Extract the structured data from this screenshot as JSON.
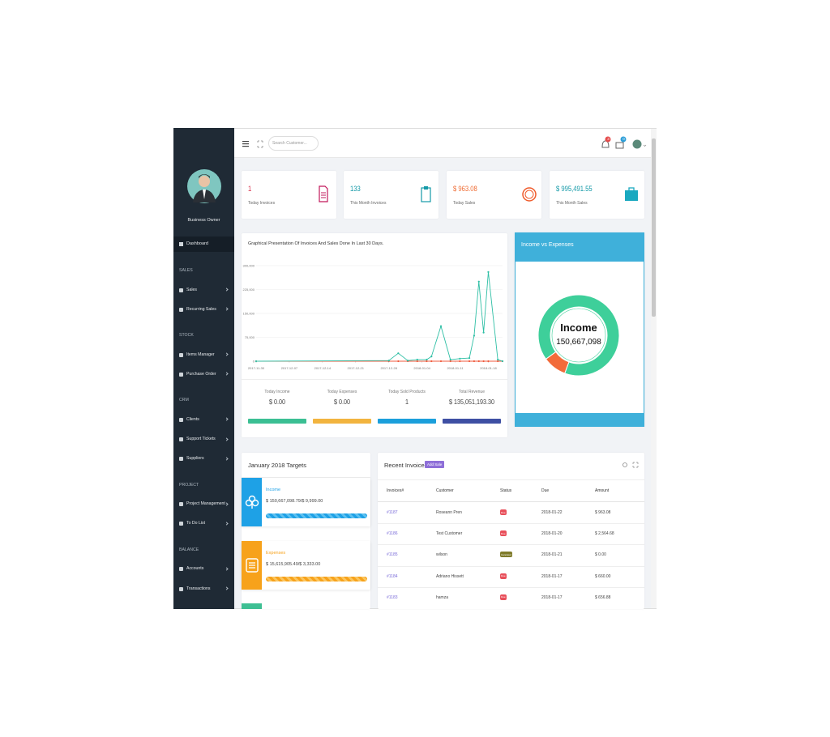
{
  "sidebar": {
    "user": "Business Owner",
    "dashboard": "Dashboard",
    "sections": [
      {
        "title": "SALES",
        "items": [
          "Sales",
          "Recurring Sales"
        ]
      },
      {
        "title": "STOCK",
        "items": [
          "Items Manager",
          "Purchase Order"
        ]
      },
      {
        "title": "CRM",
        "items": [
          "Clients",
          "Support Tickets",
          "Suppliers"
        ]
      },
      {
        "title": "PROJECT",
        "items": [
          "Project Management",
          "To Do List"
        ]
      },
      {
        "title": "BALANCE",
        "items": [
          "Accounts",
          "Transactions"
        ]
      }
    ]
  },
  "topbar": {
    "search_placeholder": "Search Customer...",
    "notifications": 3,
    "messages": 0
  },
  "stats": [
    {
      "value": "1",
      "label": "Today Invoices"
    },
    {
      "value": "133",
      "label": "This Month Invoices"
    },
    {
      "value": "$ 963.08",
      "label": "Today Sales"
    },
    {
      "value": "$ 995,491.55",
      "label": "This Month Sales"
    }
  ],
  "line_chart": {
    "type": "line",
    "title": "Graphical Presentation Of Invoices And Sales Done In Last 30 Days.",
    "x": [
      "2017-11-30",
      "2017-12-28",
      "2017-12-30",
      "2018-01-01",
      "2018-01-03",
      "2018-01-05",
      "2018-01-06",
      "2018-01-08",
      "2018-01-10",
      "2018-01-12",
      "2018-01-14",
      "2018-01-15",
      "2018-01-16",
      "2018-01-17",
      "2018-01-18",
      "2018-01-20",
      "2018-01-21"
    ],
    "series": [
      {
        "color": "#2fbfa5",
        "values": [
          0,
          2000,
          25000,
          2000,
          5000,
          5000,
          15000,
          110000,
          5000,
          8000,
          10000,
          80000,
          250000,
          90000,
          280000,
          5000,
          0
        ]
      },
      {
        "color": "#ef5a3c",
        "values": [
          0,
          0,
          0,
          0,
          0,
          0,
          0,
          0,
          0,
          0,
          0,
          0,
          0,
          0,
          0,
          0,
          0
        ]
      }
    ],
    "xlim": [
      "2017-11-30",
      "2018-01-21"
    ],
    "xticks": [
      "2017-11-30",
      "2017-12-07",
      "2017-12-14",
      "2017-12-21",
      "2017-12-28",
      "2018-01-04",
      "2018-01-11",
      "2018-01-18"
    ],
    "ylim": [
      0,
      300000
    ],
    "yticks": [
      0,
      {
        "value": 75000,
        "label": "75,000"
      },
      {
        "value": 150000,
        "label": "150,000"
      },
      {
        "value": 225000,
        "label": "225,000"
      },
      {
        "value": 300000,
        "label": "300,000"
      }
    ],
    "grid": true
  },
  "summary": [
    {
      "label": "Today Income",
      "value": "$ 0.00"
    },
    {
      "label": "Today Expenses",
      "value": "$ 0.00"
    },
    {
      "label": "Today Sold Products",
      "value": "1"
    },
    {
      "label": "Total Revenue",
      "value": "$ 135,051,193.30"
    }
  ],
  "donut": {
    "type": "pie",
    "title": "Income vs Expenses",
    "center_label": "Income",
    "center_value": "150,667,098",
    "values": [
      150667098,
      15615905
    ],
    "colors": [
      "#3ecf9a",
      "#f26b3a"
    ]
  },
  "targets": {
    "title": "January 2018 Targets",
    "items": [
      {
        "name": "Income",
        "amount": "$ 150,667,098.79/$ 9,999.00"
      },
      {
        "name": "Expenses",
        "amount": "$ 15,615,905.49/$ 3,333.00"
      }
    ]
  },
  "invoices": {
    "title": "Recent Invoices",
    "button": "Add Sale",
    "columns": [
      "Invoices#",
      "Customer",
      "Status",
      "Due",
      "Amount"
    ],
    "rows": [
      [
        "#1187",
        "Roseann Pren",
        "Due",
        "2018-01-22",
        "$ 963.08"
      ],
      [
        "#1186",
        "Test Customer",
        "Due",
        "2018-01-20",
        "$ 2,564.68"
      ],
      [
        "#1185",
        "wilson",
        "Canceled",
        "2018-01-21",
        "$ 0.00"
      ],
      [
        "#1184",
        "Adriano Hissett",
        "Due",
        "2018-01-17",
        "$ 660.00"
      ],
      [
        "#1183",
        "hamza",
        "Due",
        "2018-01-17",
        "$ 656.88"
      ]
    ]
  }
}
